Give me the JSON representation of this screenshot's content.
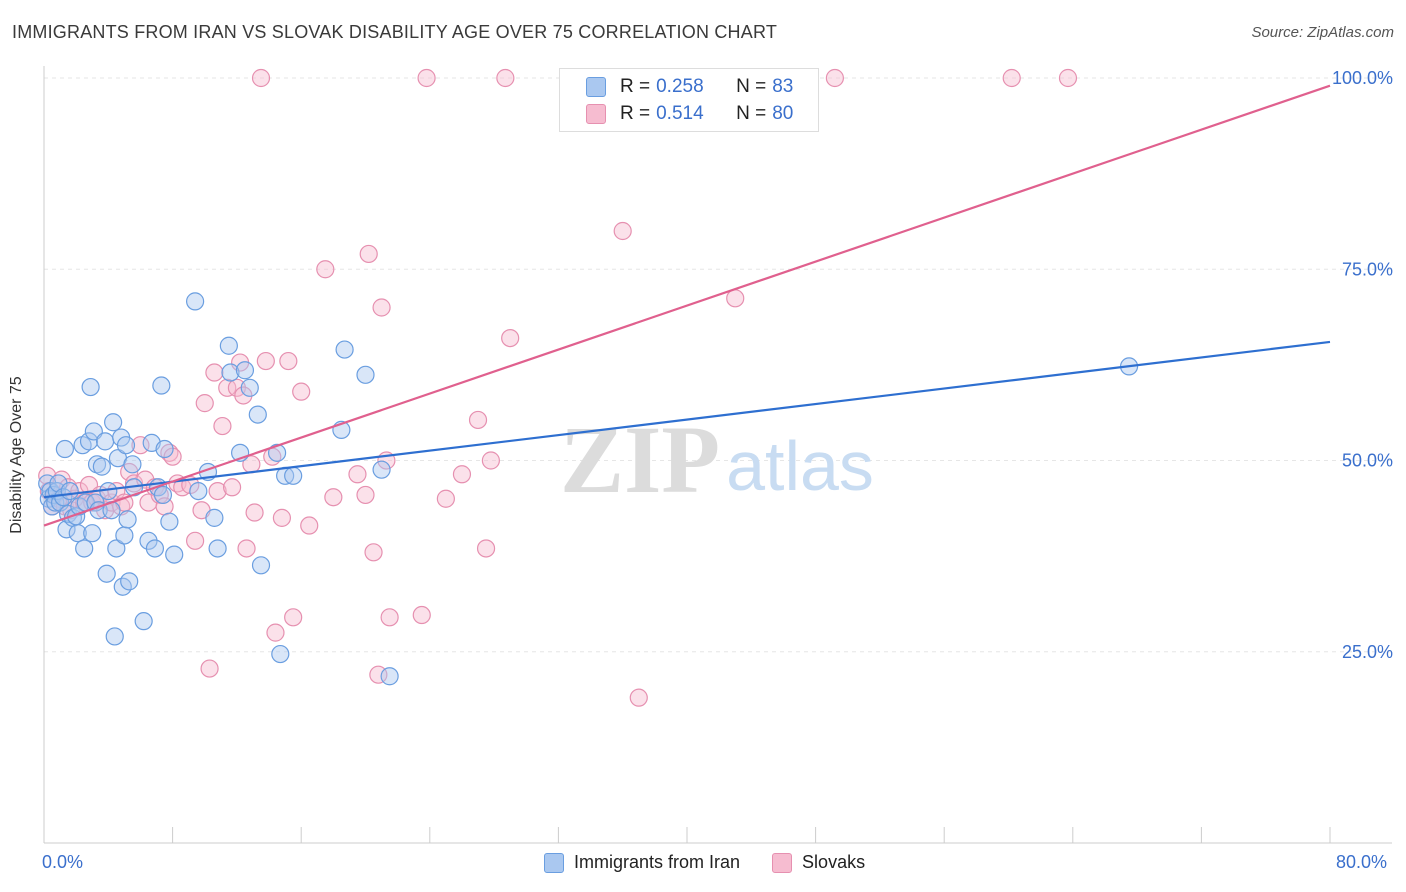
{
  "title": "IMMIGRANTS FROM IRAN VS SLOVAK DISABILITY AGE OVER 75 CORRELATION CHART",
  "source": "Source: ZipAtlas.com",
  "watermark": {
    "zip": "ZIP",
    "atlas": "atlas"
  },
  "legend": {
    "r_label": "R = ",
    "n_label": "N = ",
    "iran": {
      "r": "0.258",
      "n": "83"
    },
    "slovaks": {
      "r": "0.514",
      "n": "80"
    }
  },
  "colors": {
    "iran_fill": "#aac8f0",
    "iran_stroke": "#6a9ee0",
    "iran_line": "#2e6fd0",
    "slovak_fill": "#f6bcd0",
    "slovak_stroke": "#e690b0",
    "slovak_line": "#e0608e",
    "grid": "#e6e6e6",
    "tick_text": "#3a6fcc"
  },
  "chart_data": {
    "type": "scatter",
    "title": "IMMIGRANTS FROM IRAN VS SLOVAK DISABILITY AGE OVER 75 CORRELATION CHART",
    "xlabel": "",
    "ylabel": "Disability Age Over 75",
    "xlim": [
      0,
      80
    ],
    "ylim": [
      0,
      100
    ],
    "x_ticks_shown": [
      "0.0%",
      "80.0%"
    ],
    "y_ticks": [
      {
        "v": 25,
        "label": "25.0%"
      },
      {
        "v": 50,
        "label": "50.0%"
      },
      {
        "v": 75,
        "label": "75.0%"
      },
      {
        "v": 100,
        "label": "100.0%"
      }
    ],
    "grid": true,
    "legend_placement": "top-center",
    "series": [
      {
        "name": "Immigrants from Iran",
        "trend": [
          [
            0,
            45.2
          ],
          [
            80,
            65.5
          ]
        ],
        "points": [
          [
            0.2,
            47
          ],
          [
            0.3,
            45
          ],
          [
            0.4,
            46
          ],
          [
            0.5,
            44
          ],
          [
            0.6,
            45.5
          ],
          [
            0.7,
            44.5
          ],
          [
            0.8,
            46
          ],
          [
            0.9,
            47
          ],
          [
            1.0,
            44.5
          ],
          [
            1.2,
            45.2
          ],
          [
            1.3,
            51.5
          ],
          [
            1.4,
            41
          ],
          [
            1.5,
            43
          ],
          [
            1.6,
            46
          ],
          [
            1.8,
            42.5
          ],
          [
            2.0,
            42.7
          ],
          [
            2.1,
            40.5
          ],
          [
            2.2,
            44
          ],
          [
            2.4,
            52
          ],
          [
            2.5,
            38.5
          ],
          [
            2.6,
            44.5
          ],
          [
            2.8,
            52.5
          ],
          [
            2.9,
            59.6
          ],
          [
            3.0,
            40.5
          ],
          [
            3.1,
            53.8
          ],
          [
            3.2,
            44.5
          ],
          [
            3.3,
            49.5
          ],
          [
            3.4,
            43.5
          ],
          [
            3.6,
            49.2
          ],
          [
            3.8,
            52.5
          ],
          [
            3.9,
            35.2
          ],
          [
            4.0,
            46
          ],
          [
            4.2,
            43.5
          ],
          [
            4.3,
            55
          ],
          [
            4.4,
            27
          ],
          [
            4.5,
            38.5
          ],
          [
            4.6,
            50.3
          ],
          [
            4.8,
            53
          ],
          [
            4.9,
            33.5
          ],
          [
            5.0,
            40.2
          ],
          [
            5.1,
            52
          ],
          [
            5.2,
            42.3
          ],
          [
            5.3,
            34.2
          ],
          [
            5.5,
            49.5
          ],
          [
            5.6,
            46.5
          ],
          [
            6.2,
            29
          ],
          [
            6.5,
            39.5
          ],
          [
            6.7,
            52.3
          ],
          [
            6.9,
            38.5
          ],
          [
            7.1,
            46.5
          ],
          [
            7.3,
            59.8
          ],
          [
            7.4,
            45.5
          ],
          [
            7.5,
            51.5
          ],
          [
            7.8,
            42
          ],
          [
            8.1,
            37.7
          ],
          [
            9.4,
            70.8
          ],
          [
            9.6,
            46
          ],
          [
            10.2,
            48.5
          ],
          [
            10.6,
            42.5
          ],
          [
            10.8,
            38.5
          ],
          [
            11.5,
            65
          ],
          [
            11.6,
            61.5
          ],
          [
            12.2,
            51
          ],
          [
            12.5,
            61.8
          ],
          [
            12.8,
            59.5
          ],
          [
            13.3,
            56
          ],
          [
            13.5,
            36.3
          ],
          [
            14.5,
            51
          ],
          [
            14.7,
            24.7
          ],
          [
            15.0,
            48
          ],
          [
            15.5,
            48
          ],
          [
            18.5,
            54
          ],
          [
            18.7,
            64.5
          ],
          [
            20.0,
            61.2
          ],
          [
            21.0,
            48.8
          ],
          [
            21.5,
            21.8
          ],
          [
            67.5,
            62.3
          ]
        ]
      },
      {
        "name": "Slovaks",
        "trend": [
          [
            0,
            41.5
          ],
          [
            80,
            99
          ]
        ],
        "points": [
          [
            0.2,
            48
          ],
          [
            0.3,
            46
          ],
          [
            0.5,
            44
          ],
          [
            0.7,
            45.5
          ],
          [
            0.9,
            45
          ],
          [
            1.1,
            47.5
          ],
          [
            1.3,
            44
          ],
          [
            1.5,
            46.5
          ],
          [
            1.7,
            43.5
          ],
          [
            1.9,
            45
          ],
          [
            2.2,
            46
          ],
          [
            2.5,
            44.5
          ],
          [
            2.8,
            46.8
          ],
          [
            3.0,
            44.5
          ],
          [
            3.3,
            45
          ],
          [
            3.5,
            45.5
          ],
          [
            3.8,
            43.5
          ],
          [
            4.2,
            44.5
          ],
          [
            4.5,
            46
          ],
          [
            4.8,
            44
          ],
          [
            5.0,
            44.5
          ],
          [
            5.3,
            48.5
          ],
          [
            5.6,
            47
          ],
          [
            6.0,
            52
          ],
          [
            6.3,
            47.5
          ],
          [
            6.5,
            44.5
          ],
          [
            6.9,
            46.5
          ],
          [
            7.2,
            45.5
          ],
          [
            7.5,
            44
          ],
          [
            7.8,
            51
          ],
          [
            8.0,
            50.5
          ],
          [
            8.3,
            47
          ],
          [
            8.6,
            46.5
          ],
          [
            9.1,
            46.8
          ],
          [
            9.4,
            39.5
          ],
          [
            9.8,
            43.5
          ],
          [
            10.0,
            57.5
          ],
          [
            10.3,
            22.8
          ],
          [
            10.6,
            61.5
          ],
          [
            10.8,
            46
          ],
          [
            11.1,
            54.5
          ],
          [
            11.4,
            59.5
          ],
          [
            11.7,
            46.5
          ],
          [
            12.0,
            59.5
          ],
          [
            12.2,
            62.8
          ],
          [
            12.4,
            58.5
          ],
          [
            12.6,
            38.5
          ],
          [
            12.9,
            49.5
          ],
          [
            13.1,
            43.2
          ],
          [
            13.8,
            63
          ],
          [
            14.2,
            50.5
          ],
          [
            14.4,
            27.5
          ],
          [
            14.8,
            42.5
          ],
          [
            15.2,
            63
          ],
          [
            15.5,
            29.5
          ],
          [
            16.0,
            59
          ],
          [
            16.5,
            41.5
          ],
          [
            17.5,
            75
          ],
          [
            18.0,
            45.2
          ],
          [
            19.5,
            48.2
          ],
          [
            20.0,
            45.5
          ],
          [
            20.2,
            77
          ],
          [
            20.5,
            38
          ],
          [
            20.8,
            22
          ],
          [
            21.0,
            70
          ],
          [
            21.3,
            50
          ],
          [
            21.5,
            29.5
          ],
          [
            23.5,
            29.8
          ],
          [
            25.0,
            45
          ],
          [
            26.0,
            48.2
          ],
          [
            27.0,
            55.3
          ],
          [
            27.5,
            38.5
          ],
          [
            27.8,
            50
          ],
          [
            29.0,
            66
          ],
          [
            36.0,
            80
          ],
          [
            37.0,
            19
          ],
          [
            43.0,
            71.2
          ],
          [
            13.5,
            100.0
          ],
          [
            23.8,
            100.0
          ],
          [
            28.7,
            100.0
          ]
        ]
      }
    ],
    "extra_points": {
      "Slovaks": [
        [
          44.5,
          100.0
        ],
        [
          49.2,
          100.0
        ],
        [
          60.2,
          100.0
        ],
        [
          63.7,
          100.0
        ]
      ]
    }
  },
  "bottom_legend": {
    "iran": "Immigrants from Iran",
    "slovaks": "Slovaks"
  }
}
